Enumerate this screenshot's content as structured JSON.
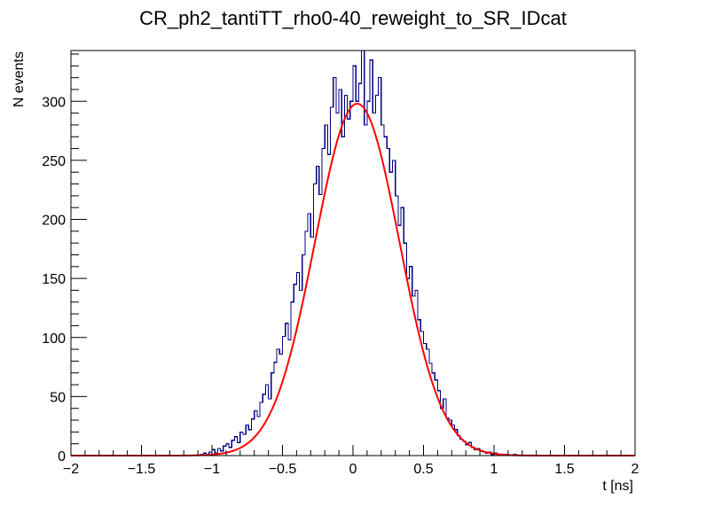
{
  "chart_data": {
    "type": "histogram",
    "title": "CR_ph2_tantiTT_rho0-40_reweight_to_SR_IDcat",
    "xlabel": "t [ns]",
    "ylabel": "N events",
    "xlim": [
      -2,
      2
    ],
    "ylim": [
      0,
      343
    ],
    "x_ticks": [
      -2,
      -1.5,
      -1,
      -0.5,
      0,
      0.5,
      1,
      1.5,
      2
    ],
    "x_tick_labels": [
      "−2",
      "−1.5",
      "−1",
      "−0.5",
      "0",
      "0.5",
      "1",
      "1.5",
      "2"
    ],
    "y_ticks": [
      0,
      50,
      100,
      150,
      200,
      250,
      300
    ],
    "y_tick_labels": [
      "0",
      "50",
      "100",
      "150",
      "200",
      "250",
      "300"
    ],
    "grid": false,
    "histogram": {
      "name": "",
      "color": "#000080",
      "bin_low": -1.1,
      "bin_width": 0.02,
      "values": [
        0,
        1,
        2,
        1,
        3,
        5,
        2,
        6,
        4,
        8,
        10,
        7,
        13,
        16,
        11,
        20,
        18,
        26,
        22,
        31,
        38,
        33,
        45,
        52,
        60,
        48,
        70,
        79,
        90,
        86,
        101,
        112,
        98,
        130,
        145,
        155,
        140,
        170,
        190,
        205,
        185,
        230,
        245,
        221,
        260,
        280,
        255,
        295,
        320,
        290,
        310,
        270,
        305,
        285,
        300,
        330,
        300,
        315,
        343,
        280,
        300,
        335,
        290,
        305,
        320,
        280,
        270,
        260,
        240,
        250,
        220,
        195,
        210,
        180,
        150,
        160,
        135,
        140,
        115,
        105,
        95,
        90,
        78,
        70,
        64,
        55,
        40,
        48,
        32,
        30,
        26,
        22,
        17,
        14,
        12,
        9,
        11,
        7,
        5,
        6,
        4,
        3,
        2,
        3,
        1,
        2,
        1,
        1,
        0,
        1,
        0,
        0,
        1,
        0,
        0
      ]
    },
    "fit": {
      "name": "",
      "color": "#ff0000",
      "type": "gaussian",
      "amplitude": 298,
      "mean": 0.03,
      "sigma": 0.3
    }
  }
}
